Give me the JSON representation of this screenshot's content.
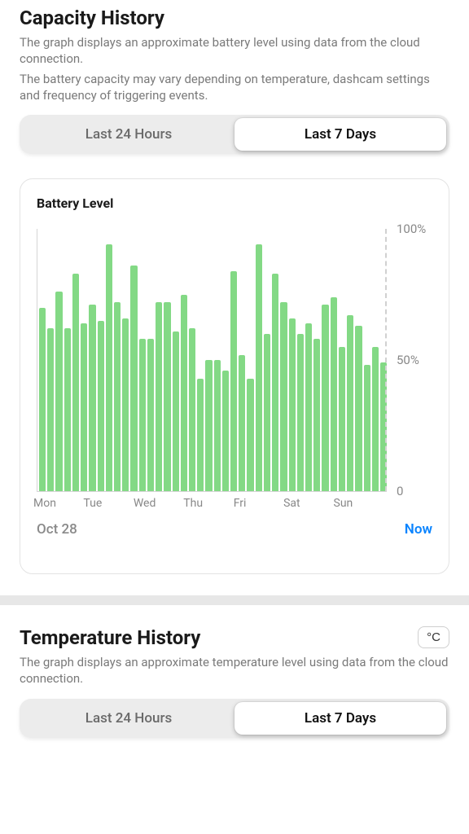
{
  "capacity": {
    "title": "Capacity History",
    "desc_line1": "The graph displays an approximate battery level using data from the cloud connection.",
    "desc_line2": "The battery capacity may vary depending on temperature, dashcam settings and frequency of triggering events.",
    "tabs": {
      "hours24": "Last 24 Hours",
      "days7": "Last 7 Days",
      "active": "days7"
    },
    "chart": {
      "type": "bar",
      "title": "Battery Level",
      "bar_color": "#83d985",
      "axis_color": "#d5d5d5",
      "grid_dash_color": "#d1d1d1",
      "label_color": "#888888",
      "label_fontsize": 14,
      "ylim": [
        0,
        100
      ],
      "yticks": [
        {
          "value": 100,
          "label": "100%"
        },
        {
          "value": 50,
          "label": "50%"
        },
        {
          "value": 0,
          "label": "0"
        }
      ],
      "x_day_labels": [
        "Mon",
        "Tue",
        "Wed",
        "Thu",
        "Fri",
        "Sat",
        "Sun"
      ],
      "bars_per_day": 6,
      "values": [
        70,
        62,
        76,
        62,
        83,
        64,
        71,
        65,
        94,
        72,
        66,
        86,
        58,
        58,
        72,
        72,
        61,
        75,
        62,
        43,
        50,
        50,
        46,
        84,
        52,
        43,
        94,
        60,
        83,
        72,
        66,
        60,
        64,
        58,
        71,
        74,
        55,
        67,
        63,
        48,
        55,
        49
      ],
      "start_label": "Oct 28",
      "end_label": "Now",
      "now_color": "#0a84ff"
    }
  },
  "temperature": {
    "title": "Temperature History",
    "unit_label": "°C",
    "desc_line1": "The graph displays an approximate temperature level using data from the cloud connection.",
    "tabs": {
      "hours24": "Last 24 Hours",
      "days7": "Last 7 Days",
      "active": "days7"
    }
  }
}
